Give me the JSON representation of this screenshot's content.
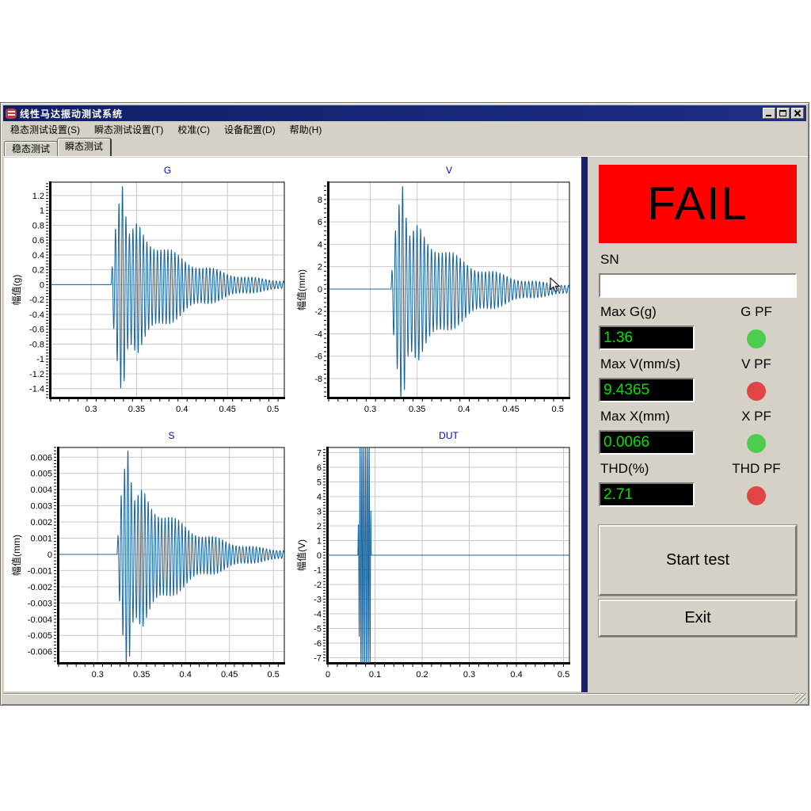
{
  "window": {
    "title": "线性马达振动测试系统"
  },
  "menu": {
    "items": [
      {
        "label": "稳态测试设置(S)"
      },
      {
        "label": "瞬态测试设置(T)"
      },
      {
        "label": "校准(C)"
      },
      {
        "label": "设备配置(D)"
      },
      {
        "label": "帮助(H)"
      }
    ]
  },
  "tabs": [
    {
      "label": "稳态测试",
      "active": false
    },
    {
      "label": "瞬态测试",
      "active": true
    }
  ],
  "right_panel": {
    "result": {
      "text": "FAIL",
      "bg": "#ff0000",
      "fg": "#000000"
    },
    "sn": {
      "label": "SN",
      "value": ""
    },
    "metrics": [
      {
        "label": "Max G(g)",
        "value": "1.36",
        "pf_label": "G PF",
        "pf": "pass"
      },
      {
        "label": "Max V(mm/s)",
        "value": "9.4365",
        "pf_label": "V PF",
        "pf": "fail"
      },
      {
        "label": "Max X(mm)",
        "value": "0.0066",
        "pf_label": "X PF",
        "pf": "pass"
      },
      {
        "label": "THD(%)",
        "value": "2.71",
        "pf_label": "THD PF",
        "pf": "fail"
      }
    ],
    "buttons": [
      {
        "label": "Start test"
      },
      {
        "label": "Exit"
      }
    ],
    "colors": {
      "pass": "#4ecc4e",
      "fail": "#df4545",
      "value_fg": "#00e000",
      "value_bg": "#000000"
    }
  },
  "chart_shared": {
    "line_color": "#15639e",
    "grid_color": "#c9c9c9",
    "title_color": "#0000cd",
    "envelope": [
      [
        0,
        0
      ],
      [
        0.002,
        0.4
      ],
      [
        0.005,
        0.7
      ],
      [
        0.009,
        0.95
      ],
      [
        0.012,
        1.08
      ],
      [
        0.014,
        0.92
      ],
      [
        0.017,
        0.6
      ],
      [
        0.02,
        0.48
      ],
      [
        0.024,
        0.52
      ],
      [
        0.029,
        0.6
      ],
      [
        0.034,
        0.56
      ],
      [
        0.04,
        0.5
      ],
      [
        0.048,
        0.44
      ],
      [
        0.058,
        0.37
      ],
      [
        0.07,
        0.3
      ],
      [
        0.085,
        0.235
      ],
      [
        0.1,
        0.185
      ],
      [
        0.115,
        0.145
      ],
      [
        0.13,
        0.11
      ],
      [
        0.145,
        0.085
      ],
      [
        0.16,
        0.065
      ],
      [
        0.175,
        0.05
      ],
      [
        0.192,
        0.04
      ]
    ]
  },
  "chart_data": [
    {
      "id": "g",
      "type": "line",
      "title": "G",
      "ylabel": "幅值(g)",
      "ml": 52,
      "xlim": [
        0.2556,
        0.5125
      ],
      "ylim": [
        -1.52,
        1.38
      ],
      "xticks": [
        0.3,
        0.35,
        0.4,
        0.45,
        0.5
      ],
      "xtick_labels": [
        "0.3",
        "0.35",
        "0.4",
        "0.45",
        "0.5"
      ],
      "yticks": [
        -1.4,
        -1.2,
        -1,
        -0.8,
        -0.6,
        -0.4,
        -0.2,
        0,
        0.2,
        0.4,
        0.6,
        0.8,
        1,
        1.2
      ],
      "ytick_labels": [
        "-1.4",
        "-1.2",
        "-1",
        "-0.8",
        "-0.6",
        "-0.4",
        "-0.2",
        "0",
        "0.2",
        "0.4",
        "0.6",
        "0.8",
        "1",
        "1.2"
      ],
      "signal": {
        "kind": "damped",
        "t0": 0.322,
        "freq": 260,
        "amp": 1.26,
        "neg_gain": 1.12,
        "beat_freq": 22
      }
    },
    {
      "id": "v",
      "type": "line",
      "title": "V",
      "ylabel": "幅值(mm)",
      "ml": 43,
      "xlim": [
        0.2556,
        0.5125
      ],
      "ylim": [
        -9.7,
        9.55
      ],
      "xticks": [
        0.3,
        0.35,
        0.4,
        0.45,
        0.5
      ],
      "xtick_labels": [
        "0.3",
        "0.35",
        "0.4",
        "0.45",
        "0.5"
      ],
      "yticks": [
        -8,
        -6,
        -4,
        -2,
        0,
        2,
        4,
        6,
        8
      ],
      "ytick_labels": [
        "-8",
        "-6",
        "-4",
        "-2",
        "0",
        "2",
        "4",
        "6",
        "8"
      ],
      "signal": {
        "kind": "damped",
        "t0": 0.322,
        "freq": 260,
        "amp": 8.74,
        "neg_gain": 1.12,
        "beat_freq": 22
      }
    },
    {
      "id": "s",
      "type": "line",
      "title": "S",
      "ylabel": "幅值(mm)",
      "ml": 62,
      "xlim": [
        0.2556,
        0.5125
      ],
      "ylim": [
        -0.0067,
        0.0066
      ],
      "xticks": [
        0.3,
        0.35,
        0.4,
        0.45,
        0.5
      ],
      "xtick_labels": [
        "0.3",
        "0.35",
        "0.4",
        "0.45",
        "0.5"
      ],
      "yticks": [
        -0.006,
        -0.005,
        -0.004,
        -0.003,
        -0.002,
        -0.001,
        0,
        0.001,
        0.002,
        0.003,
        0.004,
        0.005,
        0.006
      ],
      "ytick_labels": [
        "-0.006",
        "-0.005",
        "-0.004",
        "-0.003",
        "-0.002",
        "-0.001",
        "0",
        "0.001",
        "0.002",
        "0.003",
        "0.004",
        "0.005",
        "0.006"
      ],
      "signal": {
        "kind": "damped",
        "t0": 0.322,
        "freq": 260,
        "amp": 0.00611,
        "neg_gain": 1.12,
        "beat_freq": 22
      }
    },
    {
      "id": "dut",
      "type": "line",
      "title": "DUT",
      "ylabel": "幅值(V)",
      "ml": 42,
      "xlim": [
        0,
        0.5125
      ],
      "ylim": [
        -7.35,
        7.35
      ],
      "xticks": [
        0,
        0.1,
        0.2,
        0.3,
        0.4,
        0.5
      ],
      "xtick_labels": [
        "0",
        "0.1",
        "0.2",
        "0.3",
        "0.4",
        "0.5"
      ],
      "yticks": [
        -7,
        -6,
        -5,
        -4,
        -3,
        -2,
        -1,
        0,
        1,
        2,
        3,
        4,
        5,
        6,
        7
      ],
      "ytick_labels": [
        "-7",
        "-6",
        "-5",
        "-4",
        "-3",
        "-2",
        "-1",
        "0",
        "1",
        "2",
        "3",
        "4",
        "5",
        "6",
        "7"
      ],
      "signal": {
        "kind": "burst",
        "t0": 0.0635,
        "t1": 0.092,
        "ramp": 0.004,
        "freq": 260,
        "amp": 7.6
      }
    }
  ]
}
